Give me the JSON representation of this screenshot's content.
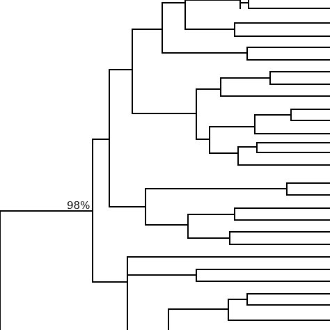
{
  "diagram": {
    "type": "phylogenetic-tree",
    "line_color": "#000000",
    "background_color": "#ffffff",
    "support_labels": [
      "98%"
    ]
  }
}
